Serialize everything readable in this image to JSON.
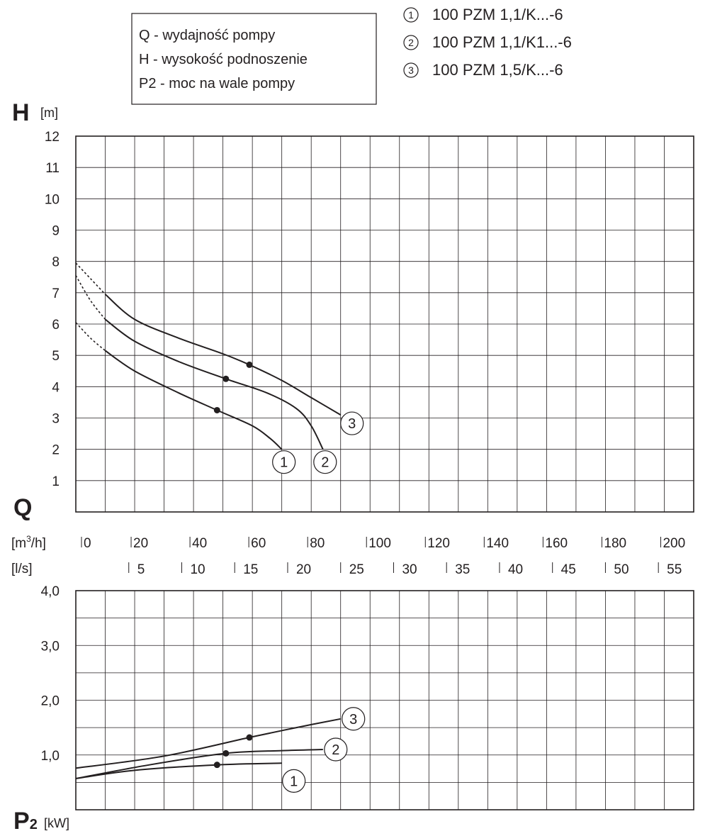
{
  "legend_box": {
    "lines": [
      "Q - wydajność pompy",
      "H - wysokość podnoszenie",
      "P2 - moc na wale pompy"
    ]
  },
  "series_legend": [
    {
      "num": "1",
      "label": "100 PZM 1,1/K...-6"
    },
    {
      "num": "2",
      "label": "100 PZM 1,1/K1...-6"
    },
    {
      "num": "3",
      "label": "100 PZM 1,5/K...-6"
    }
  ],
  "axes": {
    "h_symbol": "H",
    "h_unit": "[m]",
    "q_symbol": "Q",
    "q_unit_m3h_base": "[m",
    "q_unit_m3h_sup": "3",
    "q_unit_m3h_tail": "/h]",
    "q_unit_ls": "[l/s]",
    "p_symbol": "P",
    "p_sub": "2",
    "p_unit": "[kW]"
  },
  "chart_data": [
    {
      "type": "line",
      "x_unit": "m3/h",
      "xlim": [
        0,
        210
      ],
      "ylim": [
        0,
        12
      ],
      "x_ticks_m3h": [
        "0",
        "20",
        "40",
        "60",
        "80",
        "100",
        "120",
        "140",
        "160",
        "180",
        "200"
      ],
      "x_ticks_ls": [
        "5",
        "10",
        "15",
        "20",
        "25",
        "30",
        "35",
        "40",
        "45",
        "50",
        "55"
      ],
      "y_ticks": [
        "1",
        "2",
        "3",
        "4",
        "5",
        "6",
        "7",
        "8",
        "9",
        "10",
        "11",
        "12"
      ],
      "grid": true,
      "series": [
        {
          "name": "1",
          "dashed_x": [
            0,
            5,
            10
          ],
          "dashed_y": [
            6.05,
            5.55,
            5.15
          ],
          "x": [
            10,
            20,
            35,
            48,
            60,
            66,
            70
          ],
          "y": [
            5.15,
            4.5,
            3.8,
            3.25,
            2.75,
            2.35,
            2.0
          ],
          "marker": [
            48,
            3.25
          ]
        },
        {
          "name": "2",
          "dashed_x": [
            0,
            5,
            10
          ],
          "dashed_y": [
            7.55,
            6.75,
            6.15
          ],
          "x": [
            10,
            20,
            35,
            51,
            65,
            75,
            80,
            84
          ],
          "y": [
            6.15,
            5.45,
            4.8,
            4.25,
            3.8,
            3.3,
            2.75,
            2.0
          ],
          "marker": [
            51,
            4.25
          ]
        },
        {
          "name": "3",
          "dashed_x": [
            0,
            5,
            10
          ],
          "dashed_y": [
            7.95,
            7.45,
            6.95
          ],
          "x": [
            10,
            20,
            35,
            50,
            59,
            70,
            80,
            90
          ],
          "y": [
            6.95,
            6.15,
            5.55,
            5.05,
            4.7,
            4.2,
            3.65,
            3.1
          ],
          "marker": [
            59,
            4.7
          ]
        }
      ]
    },
    {
      "type": "line",
      "x_unit": "m3/h",
      "xlim": [
        0,
        210
      ],
      "ylim": [
        0,
        4.0
      ],
      "y_ticks": [
        "1,0",
        "2,0",
        "3,0",
        "4,0"
      ],
      "grid": true,
      "series": [
        {
          "name": "1",
          "x": [
            0,
            20,
            48,
            70
          ],
          "y": [
            0.57,
            0.72,
            0.82,
            0.85
          ],
          "marker": [
            48,
            0.82
          ]
        },
        {
          "name": "2",
          "x": [
            0,
            25,
            51,
            70,
            84
          ],
          "y": [
            0.57,
            0.82,
            1.03,
            1.08,
            1.1
          ],
          "marker": [
            51,
            1.03
          ]
        },
        {
          "name": "3",
          "x": [
            0,
            30,
            59,
            75,
            90
          ],
          "y": [
            0.76,
            0.98,
            1.32,
            1.5,
            1.66
          ],
          "marker": [
            59,
            1.32
          ]
        }
      ]
    }
  ]
}
